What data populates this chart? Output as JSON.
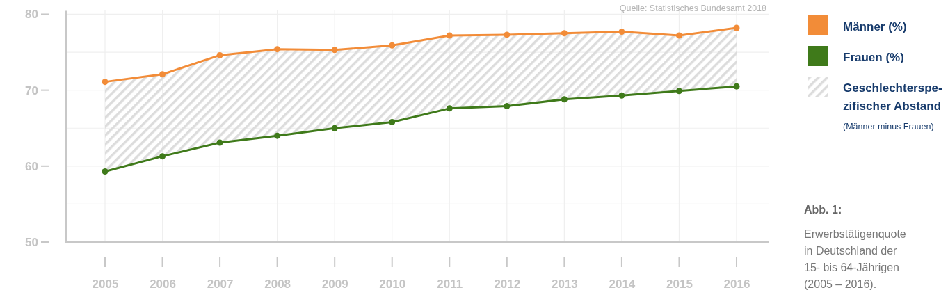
{
  "chart_data": {
    "type": "line",
    "title": "Abb. 1:",
    "subtitle": "Erwerbstätigenquote\nin Deutschland der\n15- bis 64-Jährigen\n(2005 – 2016).",
    "categories": [
      "2005",
      "2006",
      "2007",
      "2008",
      "2009",
      "2010",
      "2011",
      "2012",
      "2013",
      "2014",
      "2015",
      "2016"
    ],
    "series": [
      {
        "name": "Männer (%)",
        "color": "#f28c38",
        "values": [
          71.1,
          72.1,
          74.6,
          75.4,
          75.3,
          75.9,
          77.2,
          77.3,
          77.5,
          77.7,
          77.2,
          78.2
        ],
        "lower": [
          59.3,
          61.3,
          63.1,
          64.0,
          65.0,
          65.8,
          67.6,
          67.9,
          68.8,
          69.3,
          69.9,
          70.5
        ],
        "upper": [
          71.1,
          72.1,
          74.6,
          75.4,
          75.3,
          75.9,
          77.2,
          77.3,
          77.5,
          77.7,
          77.2,
          78.2
        ]
      },
      {
        "name": "Frauen (%)",
        "color": "#3f7a1a",
        "values": [
          59.3,
          61.3,
          63.1,
          64.0,
          65.0,
          65.8,
          67.6,
          67.9,
          68.8,
          69.3,
          69.9,
          70.5
        ]
      }
    ],
    "ylim": [
      50,
      80.5
    ],
    "yticks": [
      50,
      {
        "value": 55,
        "label": null
      },
      60,
      {
        "value": 65,
        "label": null
      },
      70,
      {
        "value": 75,
        "label": null
      },
      80
    ],
    "grid": true,
    "legend": "right",
    "marker": "circle",
    "line_style": "solid",
    "annotations": [
      "Quelle: Statistisches Bundesamt 2018",
      "Geschlechterspe-\nzifischer Abstand",
      "(Männer minus Frauen)"
    ]
  }
}
